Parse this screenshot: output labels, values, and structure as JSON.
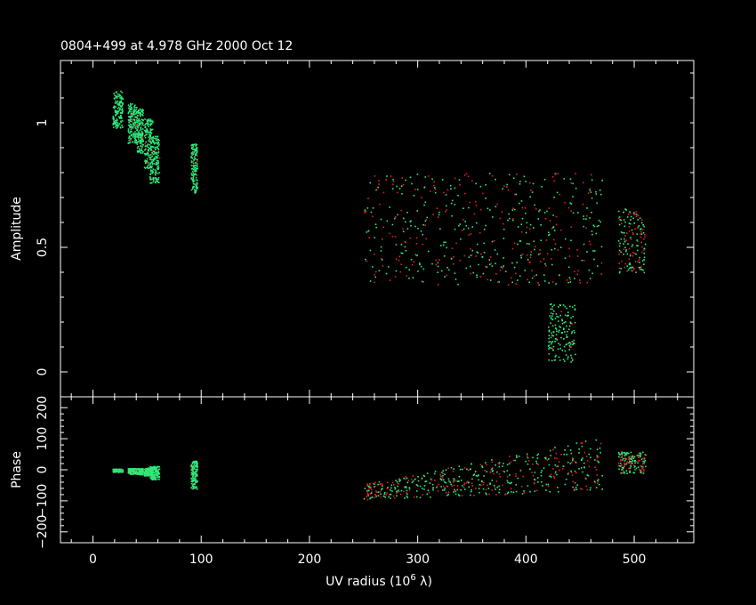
{
  "title": "0804+499 at 4.978 GHz 2000 Oct 12",
  "colors": {
    "background": "#000000",
    "axes": "#ffffff",
    "green": "#2ee87a",
    "red": "#e02020"
  },
  "chart_data": [
    {
      "type": "scatter",
      "panel": "amplitude",
      "ylabel": "Amplitude",
      "xlim": [
        -30,
        555
      ],
      "ylim": [
        -0.1,
        1.25
      ],
      "yticks": [
        {
          "value": 0,
          "label": "0"
        },
        {
          "value": 0.5,
          "label": "0.5"
        },
        {
          "value": 1,
          "label": "1"
        }
      ],
      "grid": false,
      "clusters": [
        {
          "x_range": [
            18,
            27
          ],
          "y_range": [
            0.98,
            1.13
          ],
          "dominant": "green"
        },
        {
          "x_range": [
            32,
            40
          ],
          "y_range": [
            0.92,
            1.08
          ],
          "dominant": "green"
        },
        {
          "x_range": [
            40,
            46
          ],
          "y_range": [
            0.88,
            1.06
          ],
          "dominant": "green"
        },
        {
          "x_range": [
            47,
            55
          ],
          "y_range": [
            0.82,
            1.02
          ],
          "dominant": "green"
        },
        {
          "x_range": [
            52,
            61
          ],
          "y_range": [
            0.76,
            0.95
          ],
          "dominant": "green"
        },
        {
          "x_range": [
            90,
            96
          ],
          "y_range": [
            0.72,
            0.92
          ],
          "dominant": "green"
        },
        {
          "x_range": [
            250,
            470
          ],
          "y_range": [
            0.35,
            0.8
          ],
          "dominant": "mixed"
        },
        {
          "x_range": [
            485,
            510
          ],
          "y_range": [
            0.4,
            0.66
          ],
          "dominant": "mixed"
        },
        {
          "x_range": [
            420,
            445
          ],
          "y_range": [
            0.04,
            0.28
          ],
          "dominant": "green"
        }
      ]
    },
    {
      "type": "scatter",
      "panel": "phase",
      "ylabel": "Phase",
      "xlabel": "UV radius  (10",
      "xlabel_sup": "6",
      "xlabel_end": " λ)",
      "xlim": [
        -30,
        555
      ],
      "ylim": [
        -235,
        235
      ],
      "yticks": [
        {
          "value": -200,
          "label": "−200"
        },
        {
          "value": -100,
          "label": "−100"
        },
        {
          "value": 0,
          "label": "0"
        },
        {
          "value": 100,
          "label": "100"
        },
        {
          "value": 200,
          "label": "200"
        }
      ],
      "xticks": [
        {
          "value": 0,
          "label": "0"
        },
        {
          "value": 100,
          "label": "100"
        },
        {
          "value": 200,
          "label": "200"
        },
        {
          "value": 300,
          "label": "300"
        },
        {
          "value": 400,
          "label": "400"
        },
        {
          "value": 500,
          "label": "500"
        }
      ],
      "grid": false,
      "clusters": [
        {
          "x_range": [
            18,
            27
          ],
          "y_range": [
            -6,
            4
          ],
          "dominant": "green"
        },
        {
          "x_range": [
            32,
            40
          ],
          "y_range": [
            -12,
            6
          ],
          "dominant": "green"
        },
        {
          "x_range": [
            40,
            46
          ],
          "y_range": [
            -14,
            6
          ],
          "dominant": "green"
        },
        {
          "x_range": [
            47,
            55
          ],
          "y_range": [
            -18,
            8
          ],
          "dominant": "green"
        },
        {
          "x_range": [
            52,
            61
          ],
          "y_range": [
            -30,
            14
          ],
          "dominant": "green"
        },
        {
          "x_range": [
            90,
            96
          ],
          "y_range": [
            -60,
            30
          ],
          "dominant": "green"
        },
        {
          "x_range": [
            250,
            470
          ],
          "y_range": [
            -120,
            90
          ],
          "dominant": "mixed"
        },
        {
          "x_range": [
            485,
            510
          ],
          "y_range": [
            -10,
            60
          ],
          "dominant": "mixed"
        }
      ]
    }
  ]
}
